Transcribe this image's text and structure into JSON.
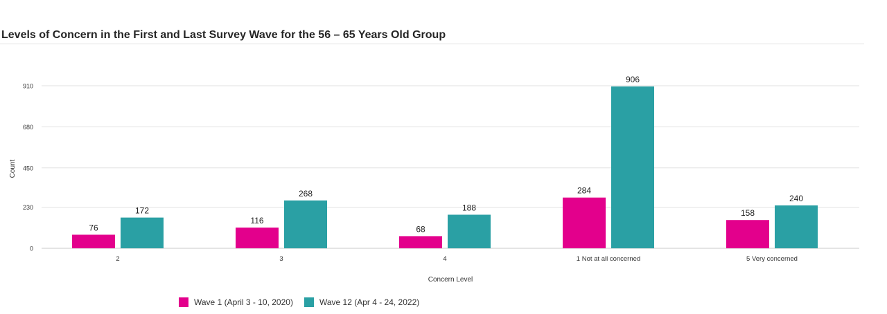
{
  "title": "Levels of Concern in the First and Last Survey Wave for the 56 – 65 Years Old Group",
  "chart_data": {
    "type": "bar",
    "title": "Levels of Concern in the First and Last Survey Wave for the 56 – 65 Years Old Group",
    "xlabel": "Concern Level",
    "ylabel": "Count",
    "categories": [
      "2",
      "3",
      "4",
      "1 Not at all concerned",
      "5 Very concerned"
    ],
    "series": [
      {
        "name": "Wave 1 (April 3 - 10, 2020)",
        "color": "#e3008c",
        "values": [
          76,
          116,
          68,
          284,
          158
        ]
      },
      {
        "name": "Wave 12 (Apr 4 - 24, 2022)",
        "color": "#2aa0a4",
        "values": [
          172,
          268,
          188,
          906,
          240
        ]
      }
    ],
    "yticks": [
      0,
      230,
      450,
      680,
      910
    ],
    "ylim": [
      0,
      910
    ],
    "grid": true,
    "legend": "bottom-left"
  }
}
